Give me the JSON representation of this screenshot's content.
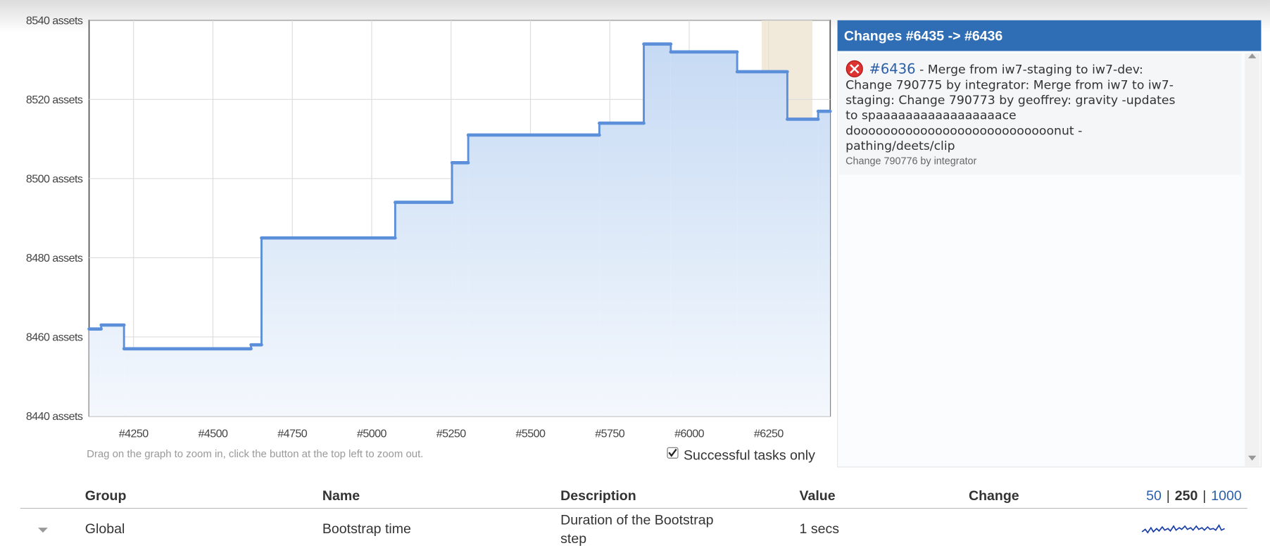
{
  "chart_data": {
    "type": "line",
    "step": "after",
    "x": [
      4110,
      4148,
      4220,
      4620,
      4653,
      5074,
      5253,
      5304,
      5717,
      5857,
      5942,
      6151,
      6309,
      6406,
      6444
    ],
    "series": [
      {
        "color": "#5b8fd9",
        "values": [
          8462,
          8463,
          8457,
          8458,
          8485,
          8494,
          8504,
          8511,
          8514,
          8534,
          8532,
          8527,
          8515,
          8517,
          8517
        ]
      }
    ],
    "xlim": [
      4110,
      6444
    ],
    "xticks": [
      {
        "value": 4250,
        "label": "#4250"
      },
      {
        "value": 4500,
        "label": "#4500"
      },
      {
        "value": 4750,
        "label": "#4750"
      },
      {
        "value": 5000,
        "label": "#5000"
      },
      {
        "value": 5250,
        "label": "#5250"
      },
      {
        "value": 5500,
        "label": "#5500"
      },
      {
        "value": 5750,
        "label": "#5750"
      },
      {
        "value": 6000,
        "label": "#6000"
      },
      {
        "value": 6250,
        "label": "#6250"
      }
    ],
    "ylim": [
      8440,
      8540
    ],
    "yticks": [
      {
        "value": 8440,
        "label": "8440 assets"
      },
      {
        "value": 8460,
        "label": "8460 assets"
      },
      {
        "value": 8480,
        "label": "8480 assets"
      },
      {
        "value": 8500,
        "label": "8500 assets"
      },
      {
        "value": 8520,
        "label": "8520 assets"
      },
      {
        "value": 8540,
        "label": "8540 assets"
      }
    ],
    "grid": true,
    "highlight": [
      6228,
      6388
    ],
    "hint": "Drag on the graph to zoom in, click the button at the top left to zoom out.",
    "checkbox_label": "Successful tasks only"
  },
  "panel": {
    "title": "Changes #6435 -> #6436",
    "entry": {
      "link": "#6436",
      "lines": [
        " - Merge from iw7-staging to iw7-dev:",
        "Change 790775 by integrator: Merge from iw7 to iw7-",
        "staging: Change 790773 by geoffrey: gravity -updates",
        "to spaaaaaaaaaaaaaaaaace",
        "dooooooooooooooooooooooooooonut -",
        "pathing/deets/clip"
      ],
      "footnote": "Change 790776 by integrator"
    }
  },
  "table": {
    "headers": [
      "Group",
      "Name",
      "Description",
      "Value",
      "Change"
    ],
    "pagination": {
      "options": [
        "50",
        "250",
        "1000"
      ],
      "separator": "|"
    },
    "rows": [
      {
        "group": "Global",
        "name": "Bootstrap time",
        "description": [
          "Duration of the Bootstrap",
          "step"
        ],
        "value": "1 secs"
      }
    ]
  }
}
